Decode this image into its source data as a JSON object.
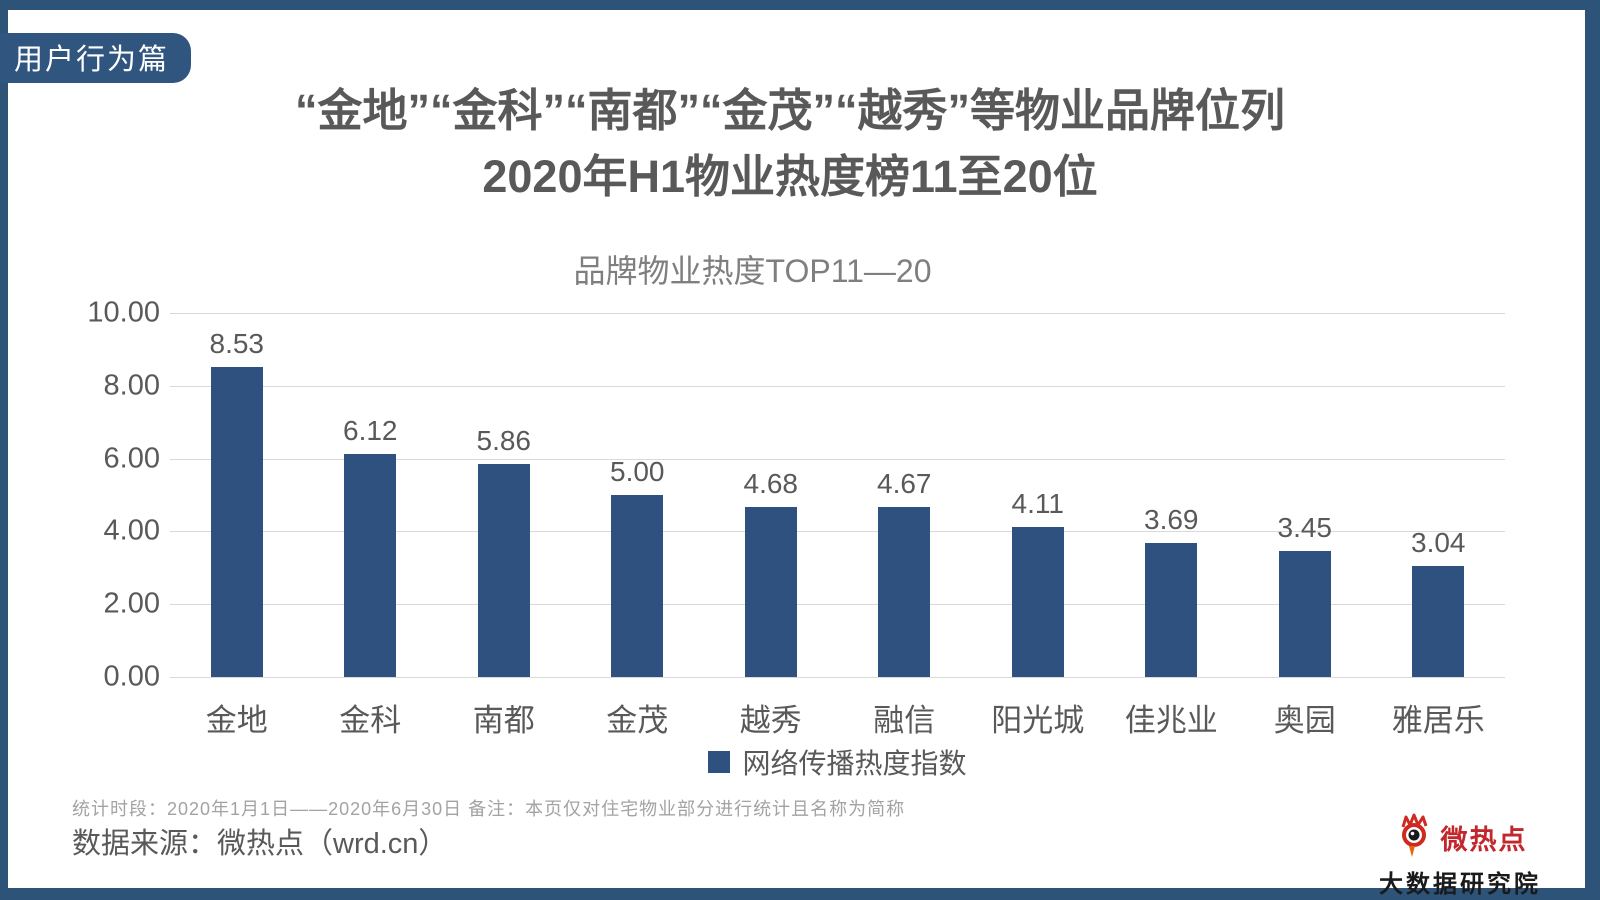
{
  "badge": "用户行为篇",
  "title": {
    "line1": "“金地”“金科”“南都”“金茂”“越秀”等物业品牌位列",
    "line2": "2020年H1物业热度榜11至20位"
  },
  "chart_data": {
    "type": "bar",
    "title": "品牌物业热度TOP11—20",
    "categories": [
      "金地",
      "金科",
      "南都",
      "金茂",
      "越秀",
      "融信",
      "阳光城",
      "佳兆业",
      "奥园",
      "雅居乐"
    ],
    "values": [
      8.53,
      6.12,
      5.86,
      5.0,
      4.68,
      4.67,
      4.11,
      3.69,
      3.45,
      3.04
    ],
    "series_name": "网络传播热度指数",
    "xlabel": "",
    "ylabel": "",
    "ylim": [
      0,
      10
    ],
    "ytick_step": 2,
    "grid": true,
    "legend_position": "bottom",
    "bar_color": "#2E5180"
  },
  "footer": {
    "note": "统计时段：2020年1月1日——2020年6月30日  备注：本页仅对住宅物业部分进行统计且名称为简称",
    "source": "数据来源：微热点（wrd.cn）"
  },
  "brand": {
    "name": "微热点",
    "subtitle": "大数据研究院"
  },
  "colors": {
    "frame": "#2E5379",
    "bar": "#2E5180",
    "title_text": "#595959"
  }
}
